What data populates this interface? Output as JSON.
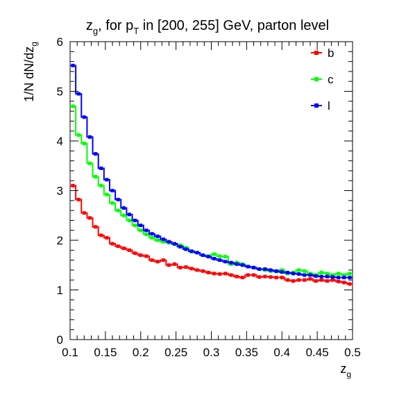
{
  "chart_data": {
    "type": "line",
    "style": "step-histogram",
    "title": {
      "parts": [
        "z",
        "g",
        ", for p",
        "T",
        " in [200, 255] GeV, parton level"
      ],
      "text": "z_g, for p_T in [200, 255] GeV, parton level"
    },
    "xlabel": {
      "main": "z",
      "sub": "g"
    },
    "ylabel": {
      "main": "1/N dN/dz",
      "sub": "g"
    },
    "xlim": [
      0.1,
      0.5
    ],
    "ylim": [
      0,
      6
    ],
    "x_ticks": [
      0.1,
      0.15,
      0.2,
      0.25,
      0.3,
      0.35,
      0.4,
      0.45,
      0.5
    ],
    "x_tick_labels": [
      "0.1",
      "0.15",
      "0.2",
      "0.25",
      "0.3",
      "0.35",
      "0.4",
      "0.45",
      "0.5"
    ],
    "y_ticks": [
      0,
      1,
      2,
      3,
      4,
      5,
      6
    ],
    "y_tick_labels": [
      "0",
      "1",
      "2",
      "3",
      "4",
      "5",
      "6"
    ],
    "grid": false,
    "legend_position": "top-right",
    "bin_edges": [
      0.1,
      0.108,
      0.116,
      0.124,
      0.132,
      0.14,
      0.148,
      0.156,
      0.164,
      0.172,
      0.18,
      0.188,
      0.196,
      0.204,
      0.212,
      0.22,
      0.228,
      0.236,
      0.244,
      0.252,
      0.26,
      0.268,
      0.276,
      0.284,
      0.292,
      0.3,
      0.308,
      0.316,
      0.324,
      0.332,
      0.34,
      0.348,
      0.356,
      0.364,
      0.372,
      0.38,
      0.388,
      0.396,
      0.404,
      0.412,
      0.42,
      0.428,
      0.436,
      0.444,
      0.452,
      0.46,
      0.468,
      0.476,
      0.484,
      0.492,
      0.5
    ],
    "series": [
      {
        "name": "b",
        "color": "#ff0000",
        "values": [
          3.1,
          2.82,
          2.55,
          2.45,
          2.27,
          2.1,
          2.05,
          1.93,
          1.88,
          1.84,
          1.8,
          1.74,
          1.7,
          1.68,
          1.6,
          1.57,
          1.6,
          1.5,
          1.52,
          1.45,
          1.46,
          1.43,
          1.4,
          1.38,
          1.35,
          1.33,
          1.32,
          1.33,
          1.3,
          1.27,
          1.25,
          1.3,
          1.3,
          1.26,
          1.27,
          1.26,
          1.25,
          1.25,
          1.2,
          1.18,
          1.2,
          1.2,
          1.22,
          1.18,
          1.2,
          1.18,
          1.2,
          1.17,
          1.15,
          1.12
        ]
      },
      {
        "name": "c",
        "color": "#00ff00",
        "values": [
          4.7,
          4.12,
          3.95,
          3.55,
          3.28,
          3.1,
          2.92,
          2.75,
          2.6,
          2.5,
          2.4,
          2.3,
          2.2,
          2.12,
          2.05,
          2.0,
          1.97,
          1.95,
          1.92,
          1.9,
          1.85,
          1.77,
          1.75,
          1.7,
          1.68,
          1.72,
          1.68,
          1.67,
          1.52,
          1.55,
          1.52,
          1.47,
          1.45,
          1.42,
          1.4,
          1.38,
          1.37,
          1.4,
          1.33,
          1.35,
          1.4,
          1.38,
          1.33,
          1.3,
          1.35,
          1.33,
          1.3,
          1.33,
          1.3,
          1.33
        ]
      },
      {
        "name": "l",
        "color": "#0000ff",
        "values": [
          5.52,
          4.95,
          4.48,
          4.08,
          3.74,
          3.45,
          3.22,
          3.0,
          2.82,
          2.65,
          2.52,
          2.4,
          2.3,
          2.2,
          2.13,
          2.08,
          2.02,
          1.97,
          1.93,
          1.87,
          1.82,
          1.78,
          1.75,
          1.7,
          1.67,
          1.63,
          1.6,
          1.57,
          1.55,
          1.52,
          1.5,
          1.47,
          1.45,
          1.42,
          1.42,
          1.4,
          1.38,
          1.36,
          1.35,
          1.33,
          1.32,
          1.3,
          1.3,
          1.28,
          1.27,
          1.27,
          1.26,
          1.25,
          1.25,
          1.25
        ]
      }
    ]
  }
}
